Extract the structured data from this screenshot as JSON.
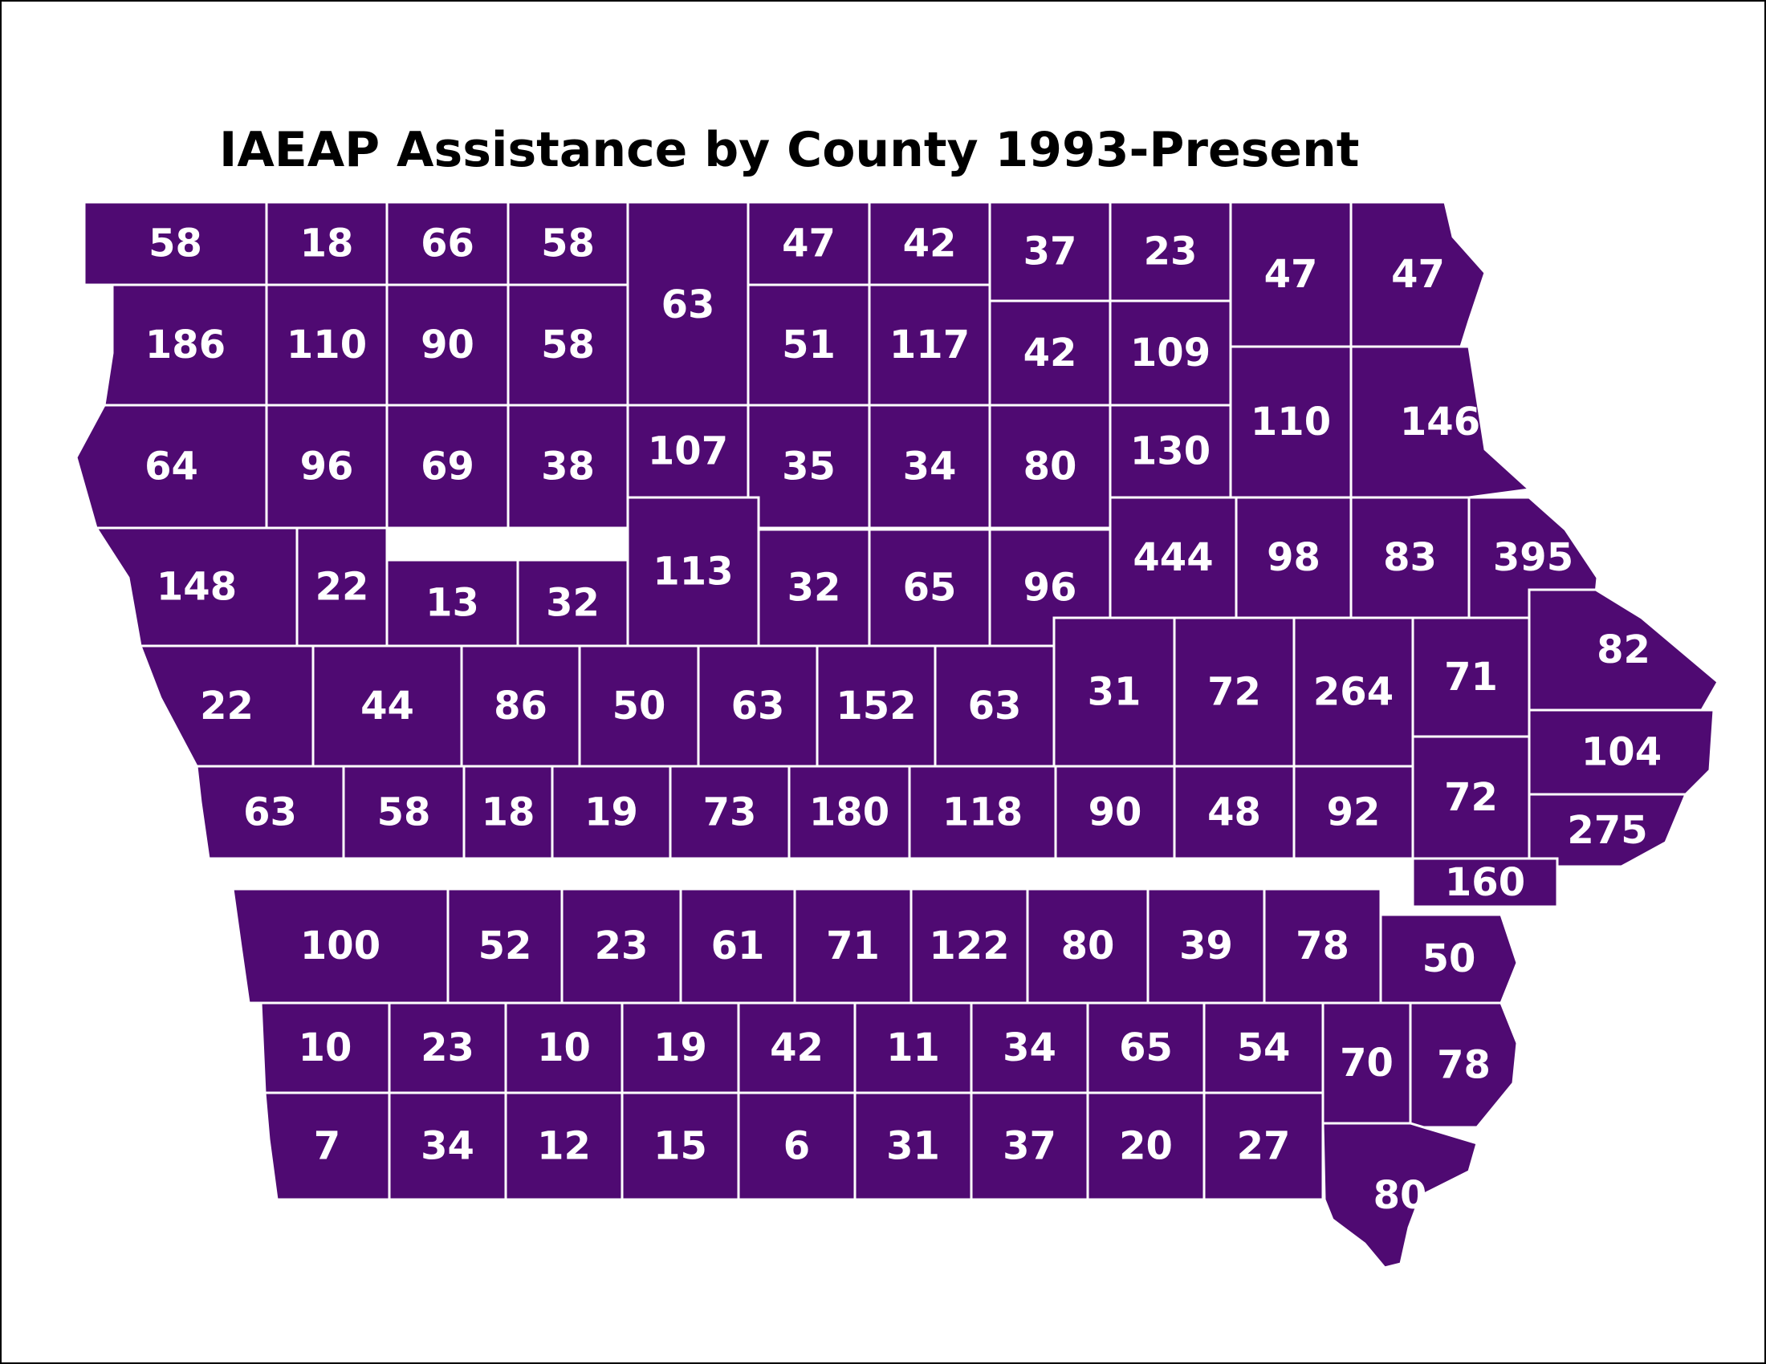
{
  "title": "IAEAP Assistance by County 1993-Present",
  "colors": {
    "fill": "#4f0a72",
    "border": "#ffffff",
    "background": "#ffffff",
    "title": "#000000"
  },
  "counties": [
    {
      "value": "58"
    },
    {
      "value": "18"
    },
    {
      "value": "66"
    },
    {
      "value": "58"
    },
    {
      "value": "63"
    },
    {
      "value": "47"
    },
    {
      "value": "42"
    },
    {
      "value": "37"
    },
    {
      "value": "23"
    },
    {
      "value": "47"
    },
    {
      "value": "47"
    },
    {
      "value": "186"
    },
    {
      "value": "110"
    },
    {
      "value": "90"
    },
    {
      "value": "58"
    },
    {
      "value": "51"
    },
    {
      "value": "117"
    },
    {
      "value": "42"
    },
    {
      "value": "109"
    },
    {
      "value": "64"
    },
    {
      "value": "96"
    },
    {
      "value": "69"
    },
    {
      "value": "38"
    },
    {
      "value": "107"
    },
    {
      "value": "35"
    },
    {
      "value": "34"
    },
    {
      "value": "80"
    },
    {
      "value": "130"
    },
    {
      "value": "110"
    },
    {
      "value": "146"
    },
    {
      "value": "148"
    },
    {
      "value": "22"
    },
    {
      "value": "13"
    },
    {
      "value": "32"
    },
    {
      "value": "113"
    },
    {
      "value": "32"
    },
    {
      "value": "65"
    },
    {
      "value": "96"
    },
    {
      "value": "444"
    },
    {
      "value": "98"
    },
    {
      "value": "83"
    },
    {
      "value": "395"
    },
    {
      "value": "22"
    },
    {
      "value": "44"
    },
    {
      "value": "86"
    },
    {
      "value": "50"
    },
    {
      "value": "63"
    },
    {
      "value": "152"
    },
    {
      "value": "63"
    },
    {
      "value": "31"
    },
    {
      "value": "72"
    },
    {
      "value": "264"
    },
    {
      "value": "71"
    },
    {
      "value": "82"
    },
    {
      "value": "104"
    },
    {
      "value": "63"
    },
    {
      "value": "58"
    },
    {
      "value": "18"
    },
    {
      "value": "19"
    },
    {
      "value": "73"
    },
    {
      "value": "180"
    },
    {
      "value": "118"
    },
    {
      "value": "90"
    },
    {
      "value": "48"
    },
    {
      "value": "92"
    },
    {
      "value": "72"
    },
    {
      "value": "275"
    },
    {
      "value": "160"
    },
    {
      "value": "100"
    },
    {
      "value": "52"
    },
    {
      "value": "23"
    },
    {
      "value": "61"
    },
    {
      "value": "71"
    },
    {
      "value": "122"
    },
    {
      "value": "80"
    },
    {
      "value": "39"
    },
    {
      "value": "78"
    },
    {
      "value": "50"
    },
    {
      "value": "10"
    },
    {
      "value": "23"
    },
    {
      "value": "10"
    },
    {
      "value": "19"
    },
    {
      "value": "42"
    },
    {
      "value": "11"
    },
    {
      "value": "34"
    },
    {
      "value": "65"
    },
    {
      "value": "54"
    },
    {
      "value": "70"
    },
    {
      "value": "78"
    },
    {
      "value": "7"
    },
    {
      "value": "34"
    },
    {
      "value": "12"
    },
    {
      "value": "15"
    },
    {
      "value": "6"
    },
    {
      "value": "31"
    },
    {
      "value": "37"
    },
    {
      "value": "20"
    },
    {
      "value": "27"
    },
    {
      "value": "80"
    }
  ]
}
